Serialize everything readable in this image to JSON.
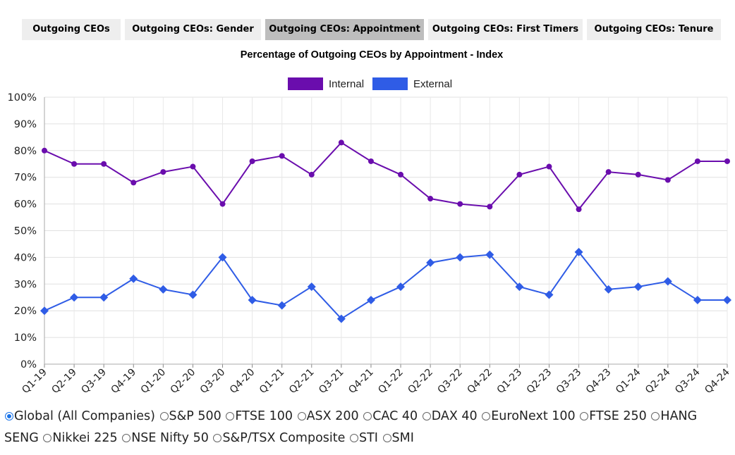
{
  "tabs": [
    {
      "label": "Outgoing CEOs",
      "active": false
    },
    {
      "label": "Outgoing CEOs: Gender",
      "active": false
    },
    {
      "label": "Outgoing CEOs: Appointment",
      "active": true
    },
    {
      "label": "Outgoing CEOs: First Timers",
      "active": false
    },
    {
      "label": "Outgoing CEOs: Tenure",
      "active": false
    }
  ],
  "chart_data": {
    "type": "line",
    "title": "Percentage of Outgoing CEOs by Appointment - Index",
    "xlabel": "",
    "ylabel": "",
    "ylim": [
      0,
      100
    ],
    "yticks": [
      "0%",
      "10%",
      "20%",
      "30%",
      "40%",
      "50%",
      "60%",
      "70%",
      "80%",
      "90%",
      "100%"
    ],
    "grid": true,
    "legend_position": "top-center",
    "categories": [
      "Q1-19",
      "Q2-19",
      "Q3-19",
      "Q4-19",
      "Q1-20",
      "Q2-20",
      "Q3-20",
      "Q4-20",
      "Q1-21",
      "Q2-21",
      "Q3-21",
      "Q4-21",
      "Q1-22",
      "Q2-22",
      "Q3-22",
      "Q4-22",
      "Q1-23",
      "Q2-23",
      "Q3-23",
      "Q4-23",
      "Q1-24",
      "Q2-24",
      "Q3-24",
      "Q4-24"
    ],
    "series": [
      {
        "name": "Internal",
        "color": "#6a0dad",
        "marker": "circle",
        "values": [
          80,
          75,
          75,
          68,
          72,
          74,
          60,
          76,
          78,
          71,
          83,
          76,
          71,
          62,
          60,
          59,
          71,
          74,
          58,
          72,
          71,
          69,
          76,
          76
        ]
      },
      {
        "name": "External",
        "color": "#2f5ce6",
        "marker": "diamond",
        "values": [
          20,
          25,
          25,
          32,
          28,
          26,
          40,
          24,
          22,
          29,
          17,
          24,
          29,
          38,
          40,
          41,
          29,
          26,
          42,
          28,
          29,
          31,
          24,
          24
        ]
      }
    ]
  },
  "filters": {
    "selected": "Global (All Companies)",
    "options": [
      "Global (All Companies)",
      "S&P 500",
      "FTSE 100",
      "ASX 200",
      "CAC 40",
      "DAX 40",
      "EuroNext 100",
      "FTSE 250",
      "HANG SENG",
      "Nikkei 225",
      "NSE Nifty 50",
      "S&P/TSX Composite",
      "STI",
      "SMI"
    ]
  }
}
